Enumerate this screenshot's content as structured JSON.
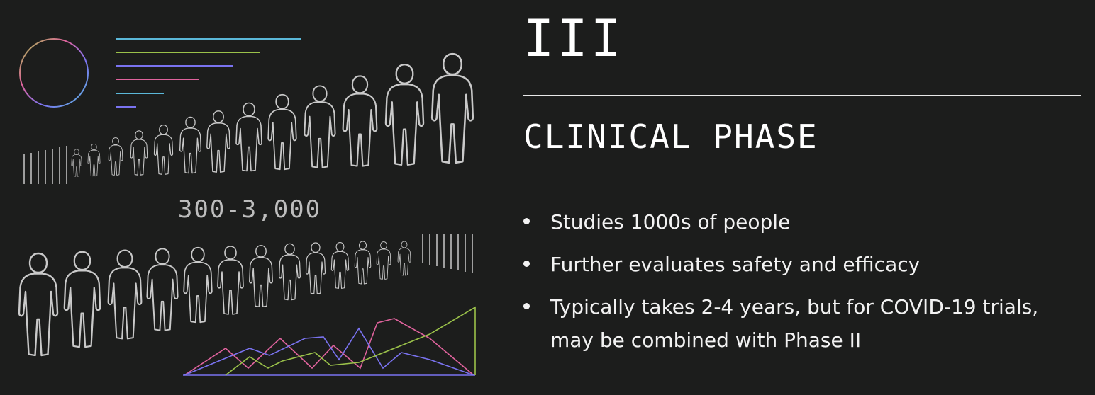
{
  "illustration": {
    "participant_count": "300-3,000",
    "palette": [
      "#5bb8d9",
      "#7a73f0",
      "#e0639d",
      "#9bc24a"
    ],
    "outline_color": "#c9c9c9"
  },
  "phase": {
    "number": "III",
    "title": "CLINICAL PHASE"
  },
  "bullets": [
    "Studies 1000s of people",
    "Further evaluates safety and efficacy",
    "Typically takes 2-4 years, but for COVID-19 trials, may be combined with Phase II"
  ]
}
